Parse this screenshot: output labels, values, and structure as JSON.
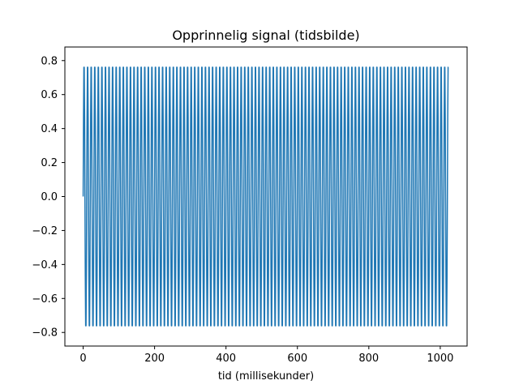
{
  "chart_data": {
    "type": "line",
    "title": "Opprinnelig signal (tidsbilde)",
    "xlabel": "tid (millisekunder)",
    "ylabel": "",
    "xlim": [
      -51.2,
      1075.2
    ],
    "ylim": [
      -0.88,
      0.88
    ],
    "x_ticks": [
      0,
      200,
      400,
      600,
      800,
      1000
    ],
    "y_ticks": [
      -0.8,
      -0.6,
      -0.4,
      -0.2,
      0.0,
      0.2,
      0.4,
      0.6,
      0.8
    ],
    "grid": false,
    "series": [
      {
        "color": "#1f77b4",
        "function": "0.8*sin(2*pi*f*t)",
        "amplitude": 0.8,
        "frequency_hz": 100,
        "t_start_ms": 0,
        "t_end_ms": 1023,
        "sample_step_ms": 1
      }
    ]
  }
}
